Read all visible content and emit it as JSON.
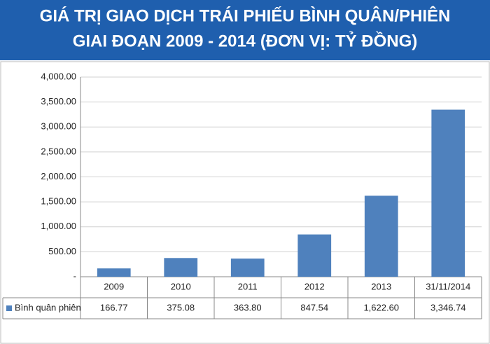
{
  "chart_data": {
    "type": "bar",
    "title": [
      "GIÁ TRỊ GIAO DỊCH TRÁI PHIẾU BÌNH QUÂN/PHIÊN",
      "GIAI ĐOẠN 2009 - 2014 (ĐƠN VỊ: TỶ ĐỒNG)"
    ],
    "categories": [
      "2009",
      "2010",
      "2011",
      "2012",
      "2013",
      "31/11/2014"
    ],
    "series": [
      {
        "name": "Bình quân phiên",
        "color": "#4f81bd",
        "values": [
          166.77,
          375.08,
          363.8,
          847.54,
          1622.6,
          3346.74
        ],
        "value_labels": [
          "166.77",
          "375.08",
          "363.80",
          "847.54",
          "1,622.60",
          "3,346.74"
        ]
      }
    ],
    "ylim": [
      0,
      4000
    ],
    "yticks": [
      {
        "value": 0,
        "label": "-"
      },
      {
        "value": 500,
        "label": "500.00"
      },
      {
        "value": 1000,
        "label": "1,000.00"
      },
      {
        "value": 1500,
        "label": "1,500.00"
      },
      {
        "value": 2000,
        "label": "2,000.00"
      },
      {
        "value": 2500,
        "label": "2,500.00"
      },
      {
        "value": 3000,
        "label": "3,000.00"
      },
      {
        "value": 3500,
        "label": "3,500.00"
      },
      {
        "value": 4000,
        "label": "4,000.00"
      }
    ],
    "grid": true
  }
}
